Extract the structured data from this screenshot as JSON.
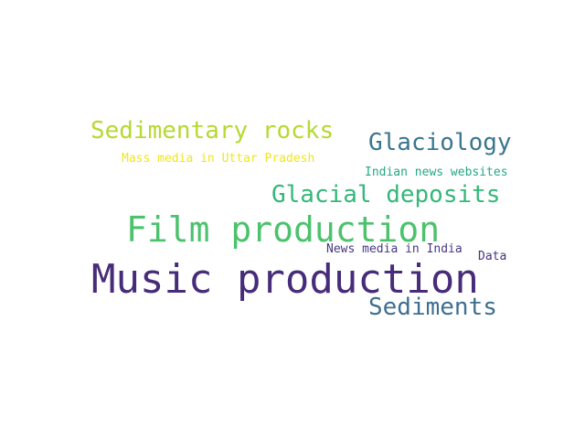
{
  "words": [
    {
      "text": "Music production",
      "color": "#472c7a"
    },
    {
      "text": "Film production",
      "color": "#4cc26c"
    },
    {
      "text": "Sedimentary rocks",
      "color": "#b6d932"
    },
    {
      "text": "Glaciology",
      "color": "#3a768e"
    },
    {
      "text": "Glacial deposits",
      "color": "#35b779"
    },
    {
      "text": "Sediments",
      "color": "#3f6f8e"
    },
    {
      "text": "Mass media in Uttar Pradesh",
      "color": "#f2e51d"
    },
    {
      "text": "Indian news websites",
      "color": "#26a784"
    },
    {
      "text": "News media in India",
      "color": "#443983"
    },
    {
      "text": "Data",
      "color": "#46327e"
    }
  ]
}
